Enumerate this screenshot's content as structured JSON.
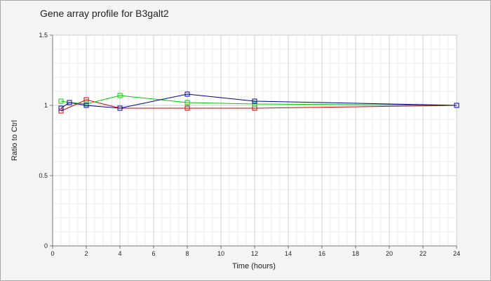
{
  "chart_data": {
    "type": "line",
    "title": "Gene array profile for B3galt2",
    "xlabel": "Time (hours)",
    "ylabel": "Ratio to Ctrl",
    "xlim": [
      0,
      24
    ],
    "ylim": [
      0,
      1.5
    ],
    "xticks": [
      0,
      2,
      4,
      6,
      8,
      10,
      12,
      14,
      16,
      18,
      20,
      22,
      24
    ],
    "yticks": [
      0,
      0.5,
      1,
      1.5
    ],
    "ytick_labels": [
      "0",
      "0.5",
      "1",
      "1.5"
    ],
    "grid": true,
    "marker": "square",
    "series": [
      {
        "color": "#cc0000",
        "x": [
          0.5,
          2,
          4,
          8,
          12,
          24
        ],
        "y": [
          0.96,
          1.04,
          0.98,
          0.98,
          0.98,
          1.0
        ]
      },
      {
        "color": "#00cc00",
        "x": [
          0.5,
          1,
          2,
          4,
          8,
          12,
          24
        ],
        "y": [
          1.03,
          1.02,
          1.01,
          1.07,
          1.02,
          1.01,
          1.0
        ]
      },
      {
        "color": "#000099",
        "x": [
          0.5,
          1,
          2,
          4,
          8,
          12,
          24
        ],
        "y": [
          0.98,
          1.02,
          1.0,
          0.98,
          1.08,
          1.03,
          1.0
        ]
      }
    ]
  }
}
